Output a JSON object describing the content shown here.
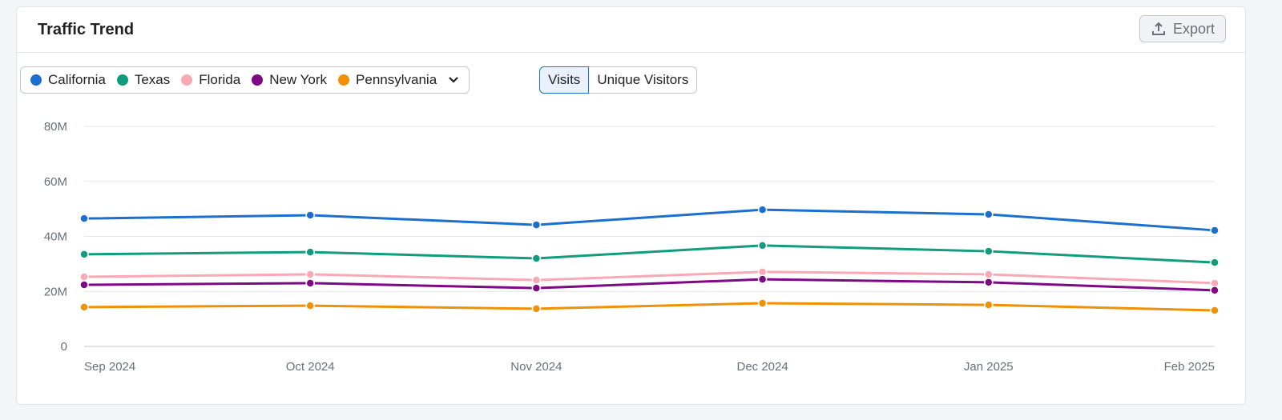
{
  "header": {
    "title": "Traffic Trend",
    "export_label": "Export"
  },
  "toggle": {
    "visits": "Visits",
    "unique": "Unique Visitors"
  },
  "chart_data": {
    "type": "line",
    "title": "",
    "categories": [
      "Sep 2024",
      "Oct 2024",
      "Nov 2024",
      "Dec 2024",
      "Jan 2025",
      "Feb 2025"
    ],
    "y_ticks": [
      "0",
      "20M",
      "40M",
      "60M",
      "80M"
    ],
    "ylim": [
      0,
      80000000
    ],
    "grid": true,
    "legend_placement": "top-left",
    "series": [
      {
        "name": "California",
        "color": "#1a6fd0",
        "values": [
          46500000,
          47700000,
          44200000,
          49700000,
          48000000,
          42200000
        ]
      },
      {
        "name": "Texas",
        "color": "#119c7e",
        "values": [
          33500000,
          34300000,
          32000000,
          36700000,
          34600000,
          30500000
        ]
      },
      {
        "name": "Florida",
        "color": "#f9a8b4",
        "values": [
          25300000,
          26200000,
          24100000,
          27100000,
          26200000,
          23000000
        ]
      },
      {
        "name": "New York",
        "color": "#7d0a84",
        "values": [
          22400000,
          23000000,
          21200000,
          24400000,
          23300000,
          20400000
        ]
      },
      {
        "name": "Pennsylvania",
        "color": "#ef9106",
        "values": [
          14300000,
          14800000,
          13700000,
          15700000,
          15100000,
          13100000
        ]
      }
    ]
  }
}
